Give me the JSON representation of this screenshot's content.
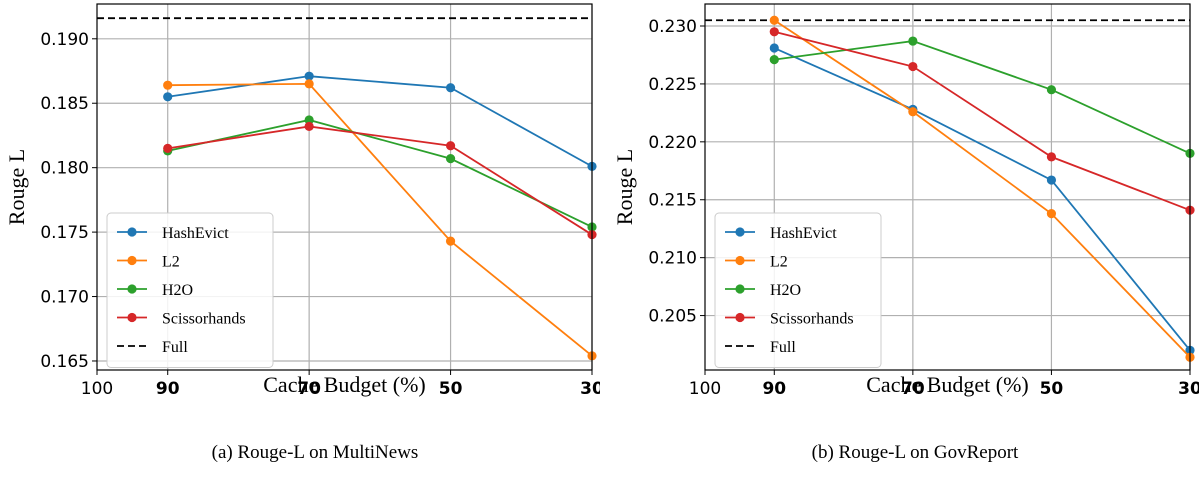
{
  "chart_data": [
    {
      "type": "line",
      "caption": "(a) Rouge-L on MultiNews",
      "xlabel": "Cache Budget (%)",
      "ylabel": "Rouge L",
      "x_ticks": [
        "100",
        "90",
        "70",
        "50",
        "30"
      ],
      "x": [
        90,
        70,
        50,
        30
      ],
      "xlim": [
        100,
        30
      ],
      "y_ticks": [
        "0.165",
        "0.170",
        "0.175",
        "0.180",
        "0.185",
        "0.190"
      ],
      "ylim": [
        0.1643,
        0.1927
      ],
      "grid": true,
      "legend_position": "lower-left",
      "series": [
        {
          "name": "HashEvict",
          "color": "#1f77b4",
          "values": [
            0.1855,
            0.1871,
            0.1862,
            0.1801
          ]
        },
        {
          "name": "L2",
          "color": "#ff7f0e",
          "values": [
            0.1864,
            0.1865,
            0.1743,
            0.1654
          ]
        },
        {
          "name": "H2O",
          "color": "#2ca02c",
          "values": [
            0.1813,
            0.1837,
            0.1807,
            0.1754
          ]
        },
        {
          "name": "Scissorhands",
          "color": "#d62728",
          "values": [
            0.1815,
            0.1832,
            0.1817,
            0.1748
          ]
        }
      ],
      "reference": {
        "name": "Full",
        "value": 0.1916,
        "color": "#000000",
        "style": "dashed"
      }
    },
    {
      "type": "line",
      "caption": "(b) Rouge-L on GovReport",
      "xlabel": "Cache Budget (%)",
      "ylabel": "Rouge L",
      "x_ticks": [
        "100",
        "90",
        "70",
        "50",
        "30"
      ],
      "x": [
        90,
        70,
        50,
        30
      ],
      "xlim": [
        100,
        30
      ],
      "y_ticks": [
        "0.205",
        "0.210",
        "0.215",
        "0.220",
        "0.225",
        "0.230"
      ],
      "ylim": [
        0.2003,
        0.2319
      ],
      "grid": true,
      "legend_position": "lower-left",
      "series": [
        {
          "name": "HashEvict",
          "color": "#1f77b4",
          "values": [
            0.2281,
            0.2228,
            0.2167,
            0.202
          ]
        },
        {
          "name": "L2",
          "color": "#ff7f0e",
          "values": [
            0.2305,
            0.2226,
            0.2138,
            0.2014
          ]
        },
        {
          "name": "H2O",
          "color": "#2ca02c",
          "values": [
            0.2271,
            0.2287,
            0.2245,
            0.219
          ]
        },
        {
          "name": "Scissorhands",
          "color": "#d62728",
          "values": [
            0.2295,
            0.2265,
            0.2187,
            0.2141
          ]
        }
      ],
      "reference": {
        "name": "Full",
        "value": 0.2305,
        "color": "#000000",
        "style": "dashed"
      }
    }
  ]
}
